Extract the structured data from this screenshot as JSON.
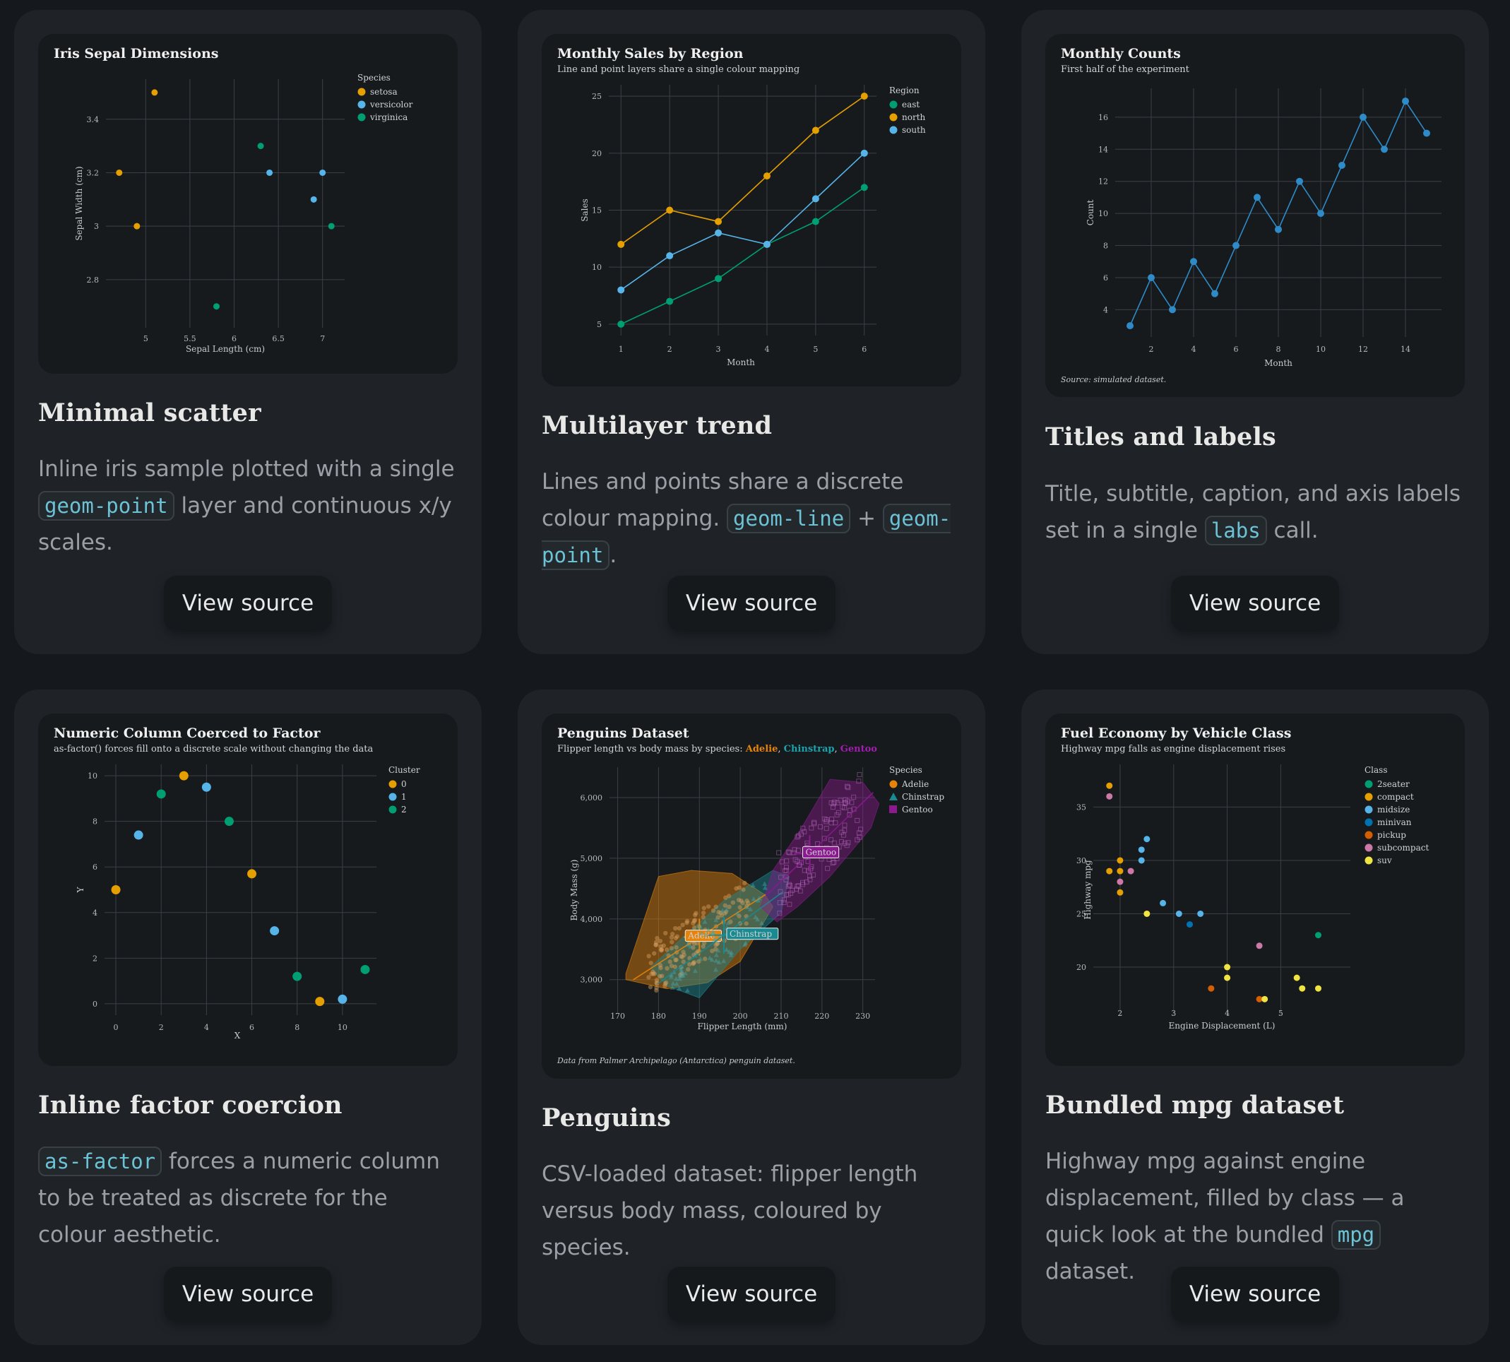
{
  "page": {
    "button_label": "View source"
  },
  "cards": [
    {
      "title": "Minimal scatter",
      "desc": {
        "pre": "Inline iris sample plotted with a single ",
        "code1": "geom-point",
        "post": " layer and continuous x/y scales."
      },
      "chart_data": {
        "type": "scatter",
        "title": "Iris Sepal Dimensions",
        "xlabel": "Sepal Length (cm)",
        "ylabel": "Sepal Width (cm)",
        "xlim": [
          4.55,
          7.25
        ],
        "ylim": [
          2.62,
          3.55
        ],
        "xticks": [
          5,
          5.5,
          6,
          6.5,
          7
        ],
        "yticks": [
          2.8,
          3,
          3.2,
          3.4
        ],
        "xtick_labels": [
          "5",
          "5.5",
          "6",
          "6.5",
          "7"
        ],
        "ytick_labels": [
          "2.8",
          "3",
          "3.2",
          "3.4"
        ],
        "legend": {
          "title": "Species",
          "placement": "right"
        },
        "series": [
          {
            "name": "setosa",
            "color": "#e69f00",
            "points": [
              [
                5.1,
                3.5
              ],
              [
                4.7,
                3.2
              ],
              [
                4.9,
                3.0
              ]
            ]
          },
          {
            "name": "versicolor",
            "color": "#56b4e9",
            "points": [
              [
                6.4,
                3.2
              ],
              [
                7.0,
                3.2
              ],
              [
                6.9,
                3.1
              ]
            ]
          },
          {
            "name": "virginica",
            "color": "#009e73",
            "points": [
              [
                6.3,
                3.3
              ],
              [
                7.1,
                3.0
              ],
              [
                5.8,
                2.7
              ]
            ]
          }
        ]
      }
    },
    {
      "title": "Multilayer trend",
      "desc": {
        "pre": "Lines and points share a discrete colour mapping. ",
        "code1": "geom-line",
        "mid": " + ",
        "code2": "geom-point",
        "post": "."
      },
      "chart_data": {
        "type": "line",
        "title": "Monthly Sales by Region",
        "subtitle": "Line and point layers share a single colour mapping",
        "xlabel": "Month",
        "ylabel": "Sales",
        "xlim": [
          0.75,
          6.25
        ],
        "ylim": [
          4.0,
          26.0
        ],
        "xticks": [
          1,
          2,
          3,
          4,
          5,
          6
        ],
        "yticks": [
          5,
          10,
          15,
          20,
          25
        ],
        "legend": {
          "title": "Region",
          "placement": "right"
        },
        "x": [
          1,
          2,
          3,
          4,
          5,
          6
        ],
        "series": [
          {
            "name": "east",
            "color": "#009e73",
            "values": [
              5,
              7,
              9,
              12,
              14,
              17
            ]
          },
          {
            "name": "north",
            "color": "#e69f00",
            "values": [
              12,
              15,
              14,
              18,
              22,
              25
            ]
          },
          {
            "name": "south",
            "color": "#56b4e9",
            "values": [
              8,
              11,
              13,
              12,
              16,
              20
            ]
          }
        ]
      }
    },
    {
      "title": "Titles and labels",
      "desc": {
        "pre": "Title, subtitle, caption, and axis labels set in a single ",
        "code1": "labs",
        "post": " call."
      },
      "chart_data": {
        "type": "line",
        "title": "Monthly Counts",
        "subtitle": "First half of the experiment",
        "caption": "Source: simulated dataset.",
        "xlabel": "Month",
        "ylabel": "Count",
        "xlim": [
          0.3,
          15.7
        ],
        "ylim": [
          2.3,
          17.8
        ],
        "xticks": [
          2,
          4,
          6,
          8,
          10,
          12,
          14
        ],
        "yticks": [
          4,
          6,
          8,
          10,
          12,
          14,
          16
        ],
        "x": [
          1,
          2,
          3,
          4,
          5,
          6,
          7,
          8,
          9,
          10,
          11,
          12,
          13,
          14,
          15
        ],
        "series": [
          {
            "color": "#2e8bc8",
            "values": [
              3,
              6,
              4,
              7,
              5,
              8,
              11,
              9,
              12,
              10,
              13,
              16,
              14,
              17,
              15
            ]
          }
        ]
      }
    },
    {
      "title": "Inline factor coercion",
      "desc": {
        "pre": "",
        "code1": "as-factor",
        "post": " forces a numeric column to be treated as discrete for the colour aesthetic."
      },
      "chart_data": {
        "type": "scatter",
        "title": "Numeric Column Coerced to Factor",
        "subtitle": "as-factor() forces fill onto a discrete scale without changing the data",
        "xlabel": "X",
        "ylabel": "Y",
        "xlim": [
          -0.5,
          11.5
        ],
        "ylim": [
          -0.5,
          10.5
        ],
        "xticks": [
          0,
          2,
          4,
          6,
          8,
          10
        ],
        "yticks": [
          0,
          2,
          4,
          6,
          8,
          10
        ],
        "legend": {
          "title": "Cluster",
          "placement": "right"
        },
        "series": [
          {
            "name": "0",
            "color": "#e69f00",
            "points": [
              [
                0,
                5
              ],
              [
                3,
                10
              ],
              [
                6,
                5.7
              ],
              [
                9,
                0.1
              ]
            ]
          },
          {
            "name": "1",
            "color": "#56b4e9",
            "points": [
              [
                1,
                7.4
              ],
              [
                4,
                9.5
              ],
              [
                7,
                3.2
              ],
              [
                10,
                0.2
              ]
            ]
          },
          {
            "name": "2",
            "color": "#009e73",
            "points": [
              [
                2,
                9.2
              ],
              [
                5,
                8
              ],
              [
                8,
                1.2
              ],
              [
                11,
                1.5
              ]
            ]
          }
        ]
      }
    },
    {
      "title": "Penguins",
      "desc": {
        "pre": "CSV-loaded dataset: flipper length versus body mass, coloured by species.",
        "code1": "",
        "post": ""
      },
      "chart_data": {
        "type": "scatter",
        "title": "Penguins Dataset",
        "subtitle": {
          "pre": "Flipper length vs body mass by species: ",
          "a": "Adelie",
          "c": "Chinstrap",
          "g": "Gentoo"
        },
        "caption": "Data from Palmer Archipelago (Antarctica) penguin dataset.",
        "xlabel": "Flipper Length (mm)",
        "ylabel": "Body Mass (g)",
        "xlim": [
          168,
          233
        ],
        "ylim": [
          2450,
          6500
        ],
        "xticks": [
          170,
          180,
          190,
          200,
          210,
          220,
          230
        ],
        "yticks": [
          3000,
          4000,
          5000,
          6000
        ],
        "ytick_labels": [
          "3,000",
          "4,000",
          "5,000",
          "6,000"
        ],
        "legend": {
          "title": "Species",
          "placement": "right"
        },
        "series": [
          {
            "name": "Adelie",
            "color": "#e6830a",
            "shape": "circle",
            "label": "Adelie",
            "hull": [
              [
                172,
                3100
              ],
              [
                180,
                4700
              ],
              [
                188,
                4800
              ],
              [
                198,
                4750
              ],
              [
                206,
                4400
              ],
              [
                208,
                4200
              ],
              [
                200,
                3300
              ],
              [
                192,
                2950
              ],
              [
                182,
                2850
              ],
              [
                172,
                3000
              ]
            ],
            "center": [
              190,
              3700
            ],
            "n": 150
          },
          {
            "name": "Chinstrap",
            "color": "#1a8a92",
            "shape": "triangle",
            "label": "Chinstrap",
            "hull": [
              [
                178,
                3200
              ],
              [
                186,
                3700
              ],
              [
                196,
                4300
              ],
              [
                208,
                4800
              ],
              [
                212,
                4700
              ],
              [
                210,
                4100
              ],
              [
                200,
                3500
              ],
              [
                190,
                2700
              ],
              [
                182,
                2900
              ]
            ],
            "center": [
              196,
              3733
            ],
            "n": 68
          },
          {
            "name": "Gentoo",
            "color": "#8a1a8e",
            "shape": "square",
            "label": "Gentoo",
            "hull": [
              [
                205,
                4200
              ],
              [
                208,
                4800
              ],
              [
                215,
                5500
              ],
              [
                222,
                6300
              ],
              [
                230,
                6250
              ],
              [
                234,
                5900
              ],
              [
                232,
                5500
              ],
              [
                222,
                4700
              ],
              [
                214,
                4200
              ],
              [
                209,
                3950
              ]
            ],
            "center": [
              217,
              5076
            ],
            "n": 124
          }
        ]
      }
    },
    {
      "title": "Bundled mpg dataset",
      "desc": {
        "pre": "Highway mpg against engine displacement, filled by class — a quick look at the bundled ",
        "code1": "mpg",
        "post": " dataset."
      },
      "chart_data": {
        "type": "scatter",
        "title": "Fuel Economy by Vehicle Class",
        "subtitle": "Highway mpg falls as engine displacement rises",
        "xlabel": "Engine Displacement (L)",
        "ylabel": "Highway mpg",
        "xlim": [
          1.5,
          6.3
        ],
        "ylim": [
          15.5,
          39
        ],
        "xticks": [
          2,
          3,
          4,
          5
        ],
        "yticks": [
          20,
          25,
          30,
          35
        ],
        "legend": {
          "title": "Class",
          "placement": "right"
        },
        "series": [
          {
            "name": "2seater",
            "color": "#009e73",
            "points": [
              [
                5.7,
                23
              ]
            ]
          },
          {
            "name": "compact",
            "color": "#e69f00",
            "points": [
              [
                1.8,
                37
              ],
              [
                1.8,
                29
              ],
              [
                2.0,
                30
              ],
              [
                2.0,
                29
              ],
              [
                2.0,
                27
              ]
            ]
          },
          {
            "name": "midsize",
            "color": "#56b4e9",
            "points": [
              [
                2.4,
                31
              ],
              [
                2.5,
                32
              ],
              [
                2.4,
                30
              ],
              [
                2.8,
                26
              ],
              [
                3.1,
                25
              ],
              [
                3.5,
                25
              ]
            ]
          },
          {
            "name": "minivan",
            "color": "#0072b2",
            "points": [
              [
                3.3,
                24
              ]
            ]
          },
          {
            "name": "pickup",
            "color": "#d55e00",
            "points": [
              [
                3.7,
                18
              ],
              [
                4.6,
                17
              ]
            ]
          },
          {
            "name": "subcompact",
            "color": "#cc79a7",
            "points": [
              [
                1.8,
                36
              ],
              [
                2.0,
                28
              ],
              [
                2.2,
                29
              ],
              [
                4.6,
                22
              ]
            ]
          },
          {
            "name": "suv",
            "color": "#f0e442",
            "points": [
              [
                2.5,
                25
              ],
              [
                4.0,
                20
              ],
              [
                4.0,
                19
              ],
              [
                4.7,
                17
              ],
              [
                5.3,
                19
              ],
              [
                5.4,
                18
              ],
              [
                5.7,
                18
              ]
            ]
          }
        ]
      }
    }
  ]
}
